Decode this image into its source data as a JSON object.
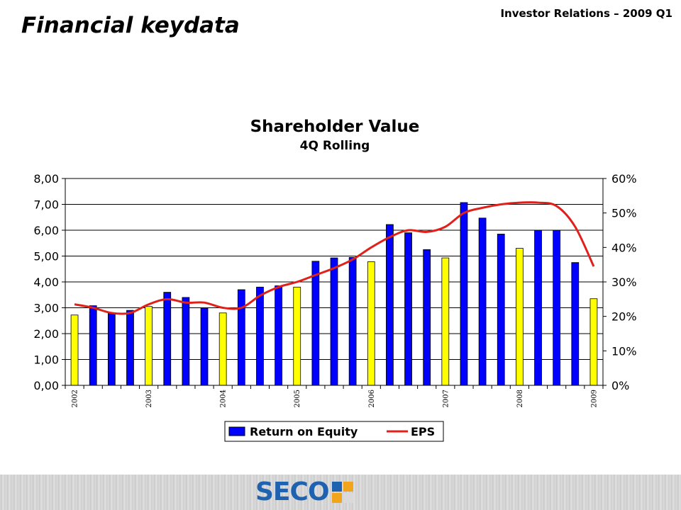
{
  "header": {
    "title": "Financial keydata",
    "subtitle_right": "Investor Relations – 2009 Q1"
  },
  "logo": {
    "text": "SECO"
  },
  "chart_data": {
    "type": "bar",
    "title": "Shareholder Value",
    "subtitle": "4Q Rolling",
    "categories": [
      "2002",
      "",
      "",
      "",
      "2003",
      "",
      "",
      "",
      "2004",
      "",
      "",
      "",
      "2005",
      "",
      "",
      "",
      "2006",
      "",
      "",
      "",
      "2007",
      "",
      "",
      "",
      "2008",
      "",
      "",
      "",
      "2009"
    ],
    "year_labels": [
      "2002",
      "2003",
      "2004",
      "2005",
      "2006",
      "2007",
      "2008",
      "2009"
    ],
    "y_left": {
      "min": 0,
      "max": 8,
      "ticks": [
        "0,00",
        "1,00",
        "2,00",
        "3,00",
        "4,00",
        "5,00",
        "6,00",
        "7,00",
        "8,00"
      ]
    },
    "y_right": {
      "min": 0,
      "max": 60,
      "ticks": [
        "0%",
        "10%",
        "20%",
        "30%",
        "40%",
        "50%",
        "60%"
      ]
    },
    "grid": true,
    "legend_position": "bottom",
    "series": [
      {
        "name": "Return on Equity",
        "type": "bar",
        "axis": "left",
        "color": "#0000ff",
        "highlight_color": "#ffff00",
        "values": [
          2.72,
          3.08,
          2.8,
          2.9,
          3.05,
          3.6,
          3.4,
          3.0,
          2.8,
          3.7,
          3.8,
          3.85,
          3.8,
          4.8,
          4.93,
          4.95,
          4.78,
          6.22,
          5.9,
          5.25,
          4.93,
          7.07,
          6.47,
          5.85,
          5.3,
          6.0,
          6.0,
          4.75,
          3.35
        ]
      },
      {
        "name": "EPS",
        "type": "line",
        "axis": "right",
        "color": "#e0201b",
        "values": [
          23.5,
          22.5,
          21.0,
          21.0,
          23.5,
          25.0,
          24.0,
          24.0,
          22.5,
          22.5,
          26.0,
          28.5,
          30.0,
          32.0,
          34.0,
          36.5,
          40.0,
          43.0,
          45.0,
          44.5,
          46.0,
          50.0,
          51.5,
          52.5,
          53.0,
          53.0,
          52.0,
          46.0,
          34.5
        ]
      }
    ]
  }
}
